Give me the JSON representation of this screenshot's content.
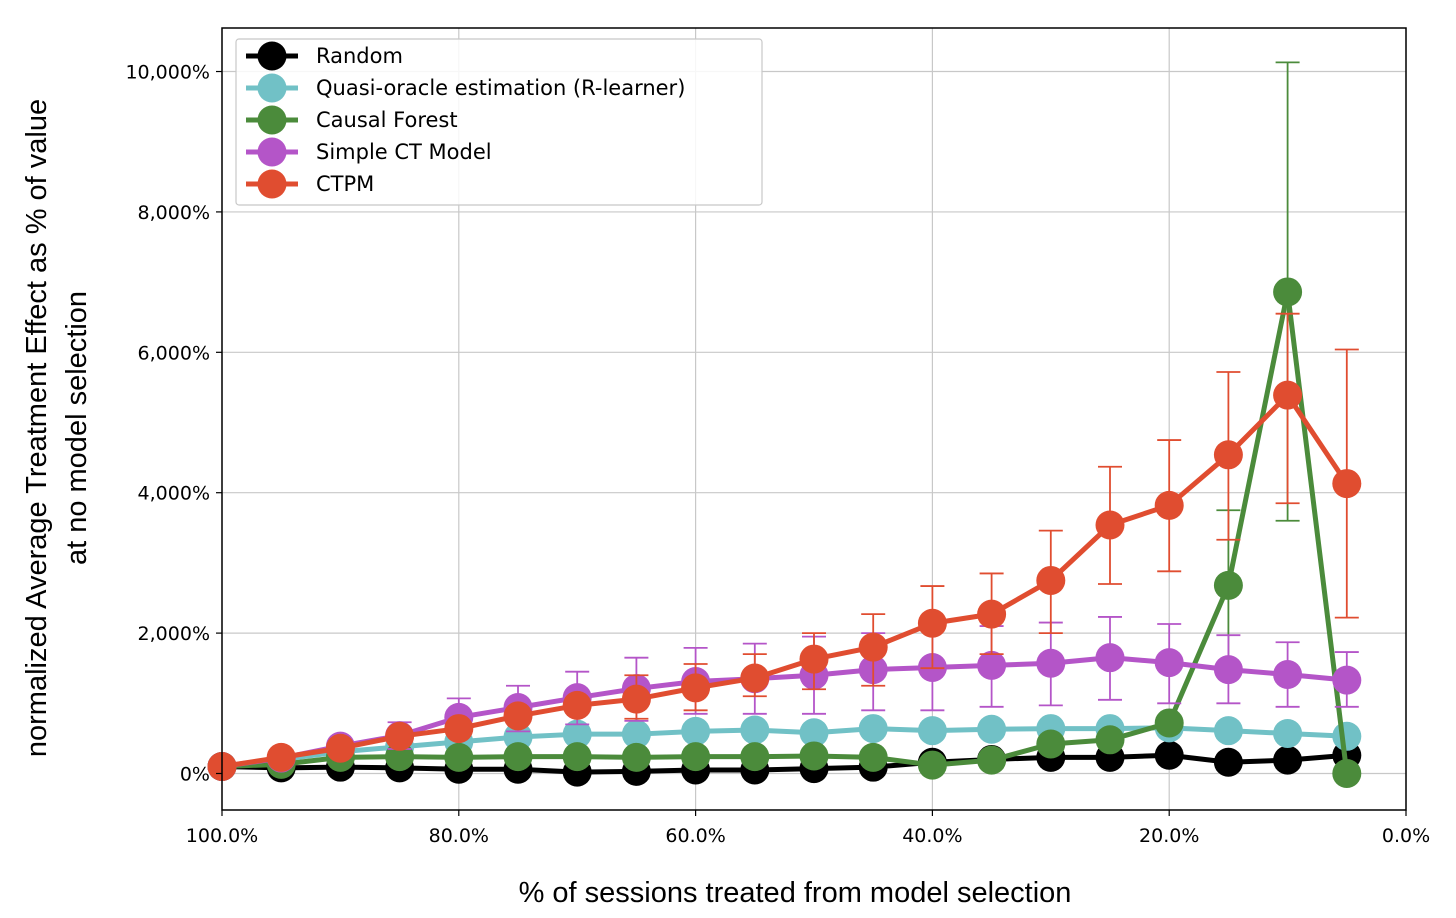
{
  "chart_data": {
    "type": "line",
    "xlabel": "% of sessions treated from model selection",
    "ylabel_line1": "normalized Average Treatment Effect as % of value",
    "ylabel_line2": "at no model selection",
    "xlim": [
      100,
      0
    ],
    "ylim": [
      -520,
      10620
    ],
    "x_ticks": [
      100,
      80,
      60,
      40,
      20,
      0
    ],
    "x_tick_labels": [
      "100.0%",
      "80.0%",
      "60.0%",
      "40.0%",
      "20.0%",
      "0.0%"
    ],
    "y_ticks": [
      0,
      2000,
      4000,
      6000,
      8000,
      10000
    ],
    "y_tick_labels": [
      "0%",
      "2,000%",
      "4,000%",
      "6,000%",
      "8,000%",
      "10,000%"
    ],
    "grid": true,
    "legend_position": "top-left",
    "x": [
      100,
      95,
      90,
      85,
      80,
      75,
      70,
      65,
      60,
      55,
      50,
      45,
      40,
      35,
      30,
      25,
      20,
      15,
      10,
      5
    ],
    "series": [
      {
        "name": "Random",
        "color": "#000000",
        "values": [
          100,
          80,
          90,
          80,
          60,
          60,
          20,
          30,
          50,
          50,
          70,
          90,
          160,
          200,
          230,
          230,
          260,
          160,
          190,
          260
        ],
        "error_low": [],
        "error_high": []
      },
      {
        "name": "Quasi-oracle estimation (R-learner)",
        "color": "#71c1c6",
        "values": [
          100,
          200,
          310,
          380,
          450,
          520,
          560,
          560,
          600,
          620,
          580,
          640,
          610,
          630,
          640,
          640,
          650,
          610,
          570,
          530
        ],
        "error_low": [],
        "error_high": []
      },
      {
        "name": "Causal Forest",
        "color": "#4b8b3b",
        "values": [
          100,
          130,
          230,
          240,
          230,
          240,
          240,
          230,
          240,
          240,
          250,
          230,
          120,
          190,
          420,
          480,
          720,
          2680,
          6860,
          0
        ],
        "error_low": [
          null,
          null,
          null,
          null,
          null,
          null,
          null,
          null,
          null,
          null,
          null,
          null,
          null,
          null,
          null,
          null,
          null,
          1500,
          3600,
          null
        ],
        "error_high": [
          null,
          null,
          null,
          null,
          null,
          null,
          null,
          null,
          null,
          null,
          null,
          null,
          null,
          null,
          null,
          null,
          null,
          3750,
          10130,
          null
        ]
      },
      {
        "name": "Simple CT Model",
        "color": "#b455c8",
        "values": [
          100,
          220,
          390,
          540,
          800,
          940,
          1080,
          1210,
          1310,
          1350,
          1400,
          1480,
          1510,
          1540,
          1570,
          1650,
          1580,
          1480,
          1410,
          1330
        ],
        "error_low": [
          null,
          null,
          330,
          350,
          550,
          600,
          700,
          750,
          850,
          850,
          850,
          900,
          900,
          950,
          970,
          1050,
          1000,
          1000,
          950,
          950
        ],
        "error_high": [
          null,
          null,
          450,
          730,
          1070,
          1250,
          1450,
          1650,
          1790,
          1850,
          1950,
          2000,
          2100,
          2100,
          2150,
          2230,
          2130,
          1970,
          1870,
          1730
        ]
      },
      {
        "name": "CTPM",
        "color": "#e04d30",
        "values": [
          100,
          230,
          360,
          530,
          640,
          820,
          970,
          1060,
          1220,
          1360,
          1630,
          1800,
          2140,
          2270,
          2750,
          3540,
          3820,
          4540,
          5390,
          4130
        ],
        "error_low": [
          null,
          null,
          null,
          null,
          null,
          null,
          null,
          780,
          900,
          1100,
          1200,
          1250,
          1500,
          1700,
          2000,
          2700,
          2880,
          3330,
          3850,
          2220
        ],
        "error_high": [
          null,
          null,
          null,
          null,
          null,
          null,
          null,
          1400,
          1560,
          1700,
          2000,
          2270,
          2670,
          2850,
          3460,
          4370,
          4750,
          5720,
          6550,
          6040
        ]
      }
    ]
  }
}
